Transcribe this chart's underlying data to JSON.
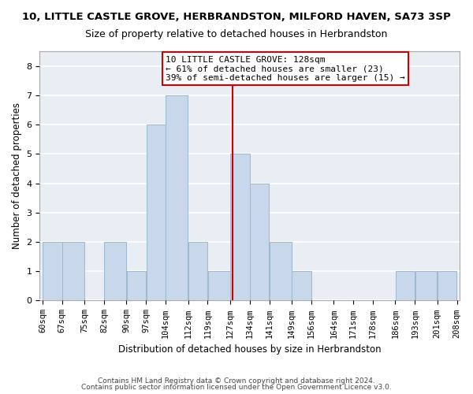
{
  "title": "10, LITTLE CASTLE GROVE, HERBRANDSTON, MILFORD HAVEN, SA73 3SP",
  "subtitle": "Size of property relative to detached houses in Herbrandston",
  "xlabel": "Distribution of detached houses by size in Herbrandston",
  "ylabel": "Number of detached properties",
  "bin_edges": [
    60,
    67,
    75,
    82,
    90,
    97,
    104,
    112,
    119,
    127,
    134,
    141,
    149,
    156,
    164,
    171,
    178,
    186,
    193,
    201,
    208
  ],
  "bar_heights": [
    2,
    2,
    0,
    2,
    1,
    6,
    7,
    2,
    1,
    5,
    4,
    2,
    1,
    0,
    0,
    0,
    0,
    1,
    1,
    1
  ],
  "bar_color": "#c8d8ea",
  "bar_edgecolor": "#9ab8d0",
  "property_line_x": 128,
  "annotation_title": "10 LITTLE CASTLE GROVE: 128sqm",
  "annotation_line1": "← 61% of detached houses are smaller (23)",
  "annotation_line2": "39% of semi-detached houses are larger (15) →",
  "ylim": [
    0,
    8.5
  ],
  "yticks": [
    0,
    1,
    2,
    3,
    4,
    5,
    6,
    7,
    8
  ],
  "footer1": "Contains HM Land Registry data © Crown copyright and database right 2024.",
  "footer2": "Contains public sector information licensed under the Open Government Licence v3.0.",
  "bg_color": "#ffffff",
  "plot_bg_color": "#e8eef4",
  "grid_color": "#ffffff",
  "annotation_box_color": "#ffffff",
  "annotation_border_color": "#cc0000",
  "line_color": "#cc0000",
  "title_fontsize": 9.5,
  "subtitle_fontsize": 9,
  "axis_label_fontsize": 8.5,
  "tick_fontsize": 7.5,
  "footer_fontsize": 6.5,
  "annot_fontsize": 8
}
